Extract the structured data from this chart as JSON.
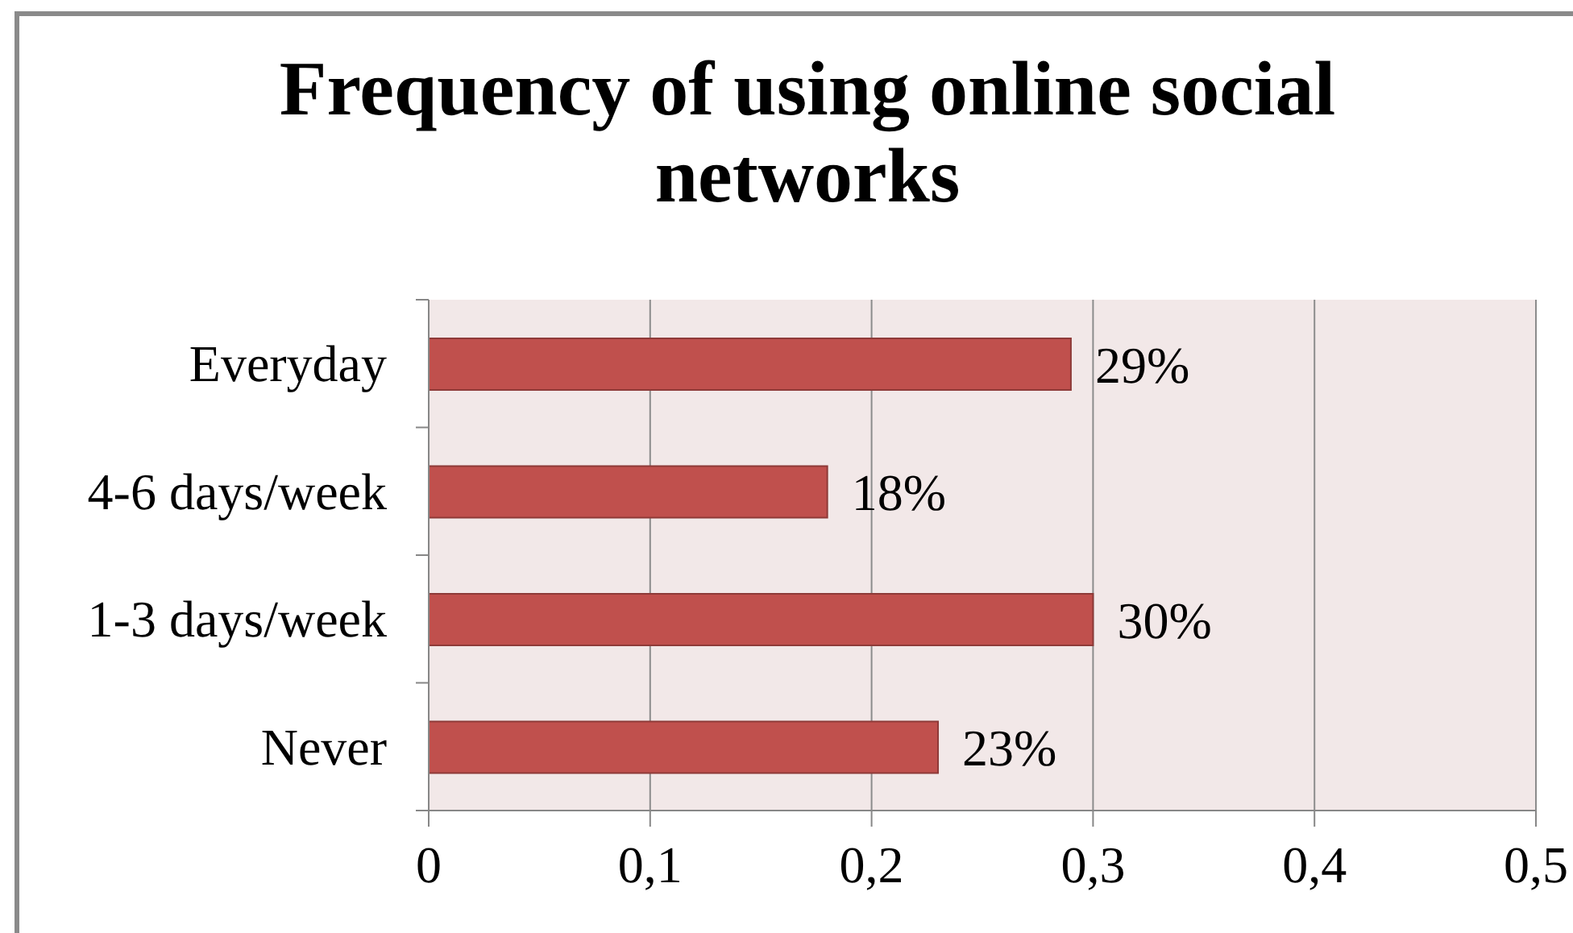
{
  "chart_data": {
    "type": "bar",
    "orientation": "horizontal",
    "title": "Frequency of using online social networks",
    "categories": [
      "Everyday",
      "4-6 days/week",
      "1-3 days/week",
      "Never"
    ],
    "values": [
      0.29,
      0.18,
      0.3,
      0.23
    ],
    "value_labels": [
      "29%",
      "18%",
      "30%",
      "23%"
    ],
    "color": "#c0504d",
    "xlim": [
      0,
      0.5
    ],
    "xticks": [
      0,
      {
        "value": 0.1,
        "label": "0,1"
      },
      {
        "value": 0.2,
        "label": "0,2"
      },
      {
        "value": 0.3,
        "label": "0,3"
      },
      {
        "value": 0.4,
        "label": "0,4"
      },
      {
        "value": 0.5,
        "label": "0,5"
      }
    ],
    "grid": "x"
  }
}
